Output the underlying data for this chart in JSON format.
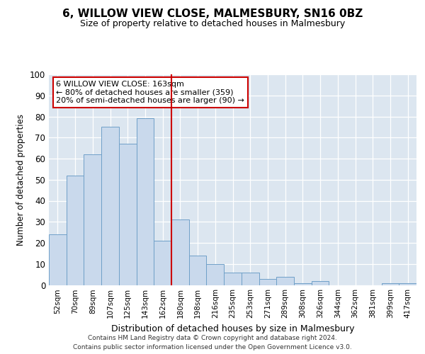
{
  "title": "6, WILLOW VIEW CLOSE, MALMESBURY, SN16 0BZ",
  "subtitle": "Size of property relative to detached houses in Malmesbury",
  "xlabel": "Distribution of detached houses by size in Malmesbury",
  "ylabel": "Number of detached properties",
  "bar_labels": [
    "52sqm",
    "70sqm",
    "89sqm",
    "107sqm",
    "125sqm",
    "143sqm",
    "162sqm",
    "180sqm",
    "198sqm",
    "216sqm",
    "235sqm",
    "253sqm",
    "271sqm",
    "289sqm",
    "308sqm",
    "326sqm",
    "344sqm",
    "362sqm",
    "381sqm",
    "399sqm",
    "417sqm"
  ],
  "bar_values": [
    24,
    52,
    62,
    75,
    67,
    79,
    21,
    31,
    14,
    10,
    6,
    6,
    3,
    4,
    1,
    2,
    0,
    0,
    0,
    1,
    1
  ],
  "bar_color": "#c9d9ec",
  "bar_edge_color": "#6fa0c8",
  "vline_index": 6,
  "vline_color": "#cc0000",
  "annotation_line1": "6 WILLOW VIEW CLOSE: 163sqm",
  "annotation_line2": "← 80% of detached houses are smaller (359)",
  "annotation_line3": "20% of semi-detached houses are larger (90) →",
  "annotation_box_color": "#cc0000",
  "ylim": [
    0,
    100
  ],
  "yticks": [
    0,
    10,
    20,
    30,
    40,
    50,
    60,
    70,
    80,
    90,
    100
  ],
  "background_color": "#dce6f0",
  "grid_color": "#ffffff",
  "title_fontsize": 11,
  "subtitle_fontsize": 9,
  "footer_line1": "Contains HM Land Registry data © Crown copyright and database right 2024.",
  "footer_line2": "Contains public sector information licensed under the Open Government Licence v3.0."
}
